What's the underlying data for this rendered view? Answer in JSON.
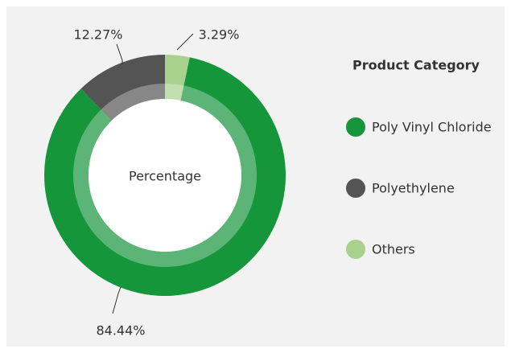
{
  "chart_data": {
    "type": "donut",
    "center_label": "Percentage",
    "legend_title": "Product Category",
    "categories": [
      "Poly Vinyl Chloride",
      "Polyethylene",
      "Others"
    ],
    "values": [
      84.44,
      12.27,
      3.29
    ],
    "value_labels": [
      "84.44%",
      "12.27%",
      "3.29%"
    ],
    "colors": [
      "#16963b",
      "#545454",
      "#a9d18e"
    ],
    "legend": "right"
  }
}
